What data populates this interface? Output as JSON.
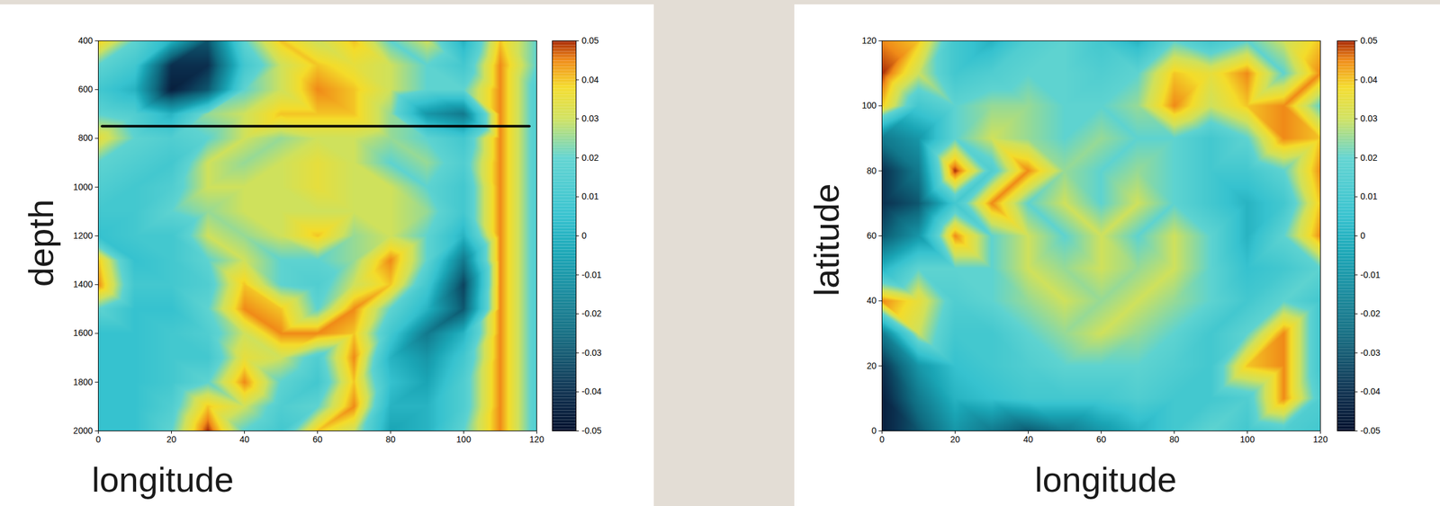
{
  "chart_data": [
    {
      "type": "heatmap",
      "xlabel": "longitude",
      "ylabel": "depth",
      "xlim": [
        0,
        120
      ],
      "ylim": [
        2000,
        400
      ],
      "xticks": [
        0,
        20,
        40,
        60,
        80,
        100,
        120
      ],
      "yticks": [
        400,
        600,
        800,
        1000,
        1200,
        1400,
        1600,
        1800,
        2000
      ],
      "x": [
        0,
        10,
        20,
        30,
        40,
        50,
        60,
        70,
        80,
        90,
        100,
        110,
        120
      ],
      "y": [
        400,
        500,
        600,
        700,
        800,
        900,
        1000,
        1100,
        1200,
        1300,
        1400,
        1500,
        1600,
        1700,
        1800,
        1900,
        2000
      ],
      "cells": [
        [
          0.04,
          0.02,
          0.0,
          -0.03,
          0.02,
          0.04,
          0.03,
          0.04,
          0.02,
          0.03,
          0.0,
          0.04,
          0.02
        ],
        [
          0.02,
          0.01,
          -0.04,
          -0.04,
          0.01,
          0.03,
          0.04,
          0.035,
          0.03,
          0.02,
          0.01,
          0.045,
          0.02
        ],
        [
          0.01,
          0.0,
          -0.045,
          -0.03,
          0.02,
          0.03,
          0.045,
          0.04,
          0.03,
          0.02,
          0.02,
          0.045,
          0.015
        ],
        [
          0.02,
          0.015,
          0.0,
          0.025,
          0.03,
          0.04,
          0.04,
          0.04,
          0.025,
          -0.01,
          -0.02,
          0.045,
          0.015
        ],
        [
          0.035,
          0.02,
          0.015,
          0.02,
          0.03,
          0.025,
          0.03,
          0.03,
          0.025,
          0.02,
          0.01,
          0.045,
          0.015
        ],
        [
          0.02,
          0.015,
          0.01,
          0.03,
          0.025,
          0.03,
          0.035,
          0.03,
          0.02,
          0.025,
          0.015,
          0.045,
          0.015
        ],
        [
          0.015,
          0.01,
          0.015,
          0.03,
          0.03,
          0.03,
          0.035,
          0.03,
          0.03,
          0.02,
          0.01,
          0.045,
          0.015
        ],
        [
          0.01,
          0.01,
          0.02,
          0.025,
          0.03,
          0.03,
          0.03,
          0.03,
          0.03,
          0.025,
          0.01,
          0.045,
          0.015
        ],
        [
          0.005,
          0.01,
          0.01,
          0.03,
          0.025,
          0.03,
          0.04,
          0.025,
          0.03,
          0.02,
          0.0,
          0.045,
          0.015
        ],
        [
          0.04,
          0.005,
          0.01,
          0.02,
          0.03,
          0.02,
          0.02,
          0.025,
          0.045,
          0.02,
          -0.02,
          0.045,
          0.015
        ],
        [
          0.045,
          0.01,
          0.01,
          0.015,
          0.04,
          0.02,
          0.015,
          0.03,
          0.04,
          0.01,
          -0.035,
          0.045,
          0.015
        ],
        [
          0.02,
          0.005,
          0.005,
          0.02,
          0.045,
          0.04,
          0.02,
          0.045,
          0.02,
          0.0,
          -0.03,
          0.045,
          0.015
        ],
        [
          0.005,
          0.005,
          0.01,
          0.015,
          0.03,
          0.045,
          0.045,
          0.04,
          0.01,
          -0.02,
          0.0,
          0.045,
          0.015
        ],
        [
          0.005,
          0.005,
          0.01,
          0.01,
          0.035,
          0.03,
          0.015,
          0.045,
          0.0,
          -0.01,
          0.01,
          0.045,
          0.015
        ],
        [
          0.005,
          0.005,
          0.01,
          0.02,
          0.045,
          0.02,
          0.01,
          0.04,
          0.005,
          -0.005,
          0.015,
          0.045,
          0.015
        ],
        [
          0.005,
          0.005,
          0.015,
          0.04,
          0.03,
          0.015,
          0.02,
          0.045,
          0.0,
          0.0,
          0.015,
          0.045,
          0.015
        ],
        [
          0.005,
          0.005,
          0.02,
          0.05,
          0.02,
          0.01,
          0.04,
          0.03,
          -0.005,
          0.0,
          0.02,
          0.045,
          0.015
        ]
      ],
      "colorbar": {
        "range": [
          -0.05,
          0.05
        ],
        "ticks": [
          -0.05,
          -0.04,
          -0.03,
          -0.02,
          -0.01,
          0,
          0.01,
          0.02,
          0.03,
          0.04,
          0.05
        ]
      },
      "hline": {
        "y": 750,
        "x": [
          1,
          118
        ]
      }
    },
    {
      "type": "heatmap",
      "xlabel": "longitude",
      "ylabel": "latitude",
      "xlim": [
        0,
        120
      ],
      "ylim": [
        0,
        120
      ],
      "xticks": [
        0,
        20,
        40,
        60,
        80,
        100,
        120
      ],
      "yticks": [
        0,
        20,
        40,
        60,
        80,
        100,
        120
      ],
      "x": [
        0,
        10,
        20,
        30,
        40,
        50,
        60,
        70,
        80,
        90,
        100,
        110,
        120
      ],
      "y": [
        120,
        110,
        100,
        90,
        80,
        70,
        60,
        50,
        40,
        30,
        20,
        10,
        0
      ],
      "cells": [
        [
          0.045,
          0.04,
          0.01,
          0.0,
          0.015,
          0.02,
          0.01,
          0.0,
          0.02,
          0.01,
          0.02,
          0.03,
          0.04
        ],
        [
          0.05,
          0.03,
          0.01,
          0.015,
          0.02,
          0.02,
          0.015,
          0.02,
          0.04,
          0.035,
          0.045,
          0.02,
          0.045
        ],
        [
          0.04,
          0.01,
          0.02,
          0.025,
          0.025,
          0.02,
          0.02,
          0.025,
          0.045,
          0.03,
          0.04,
          0.045,
          0.02
        ],
        [
          -0.02,
          -0.01,
          0.02,
          0.03,
          0.025,
          0.02,
          0.025,
          0.02,
          0.02,
          0.01,
          0.02,
          0.045,
          0.04
        ],
        [
          -0.04,
          -0.02,
          0.05,
          0.015,
          0.045,
          0.025,
          0.02,
          0.025,
          0.02,
          0.01,
          0.01,
          0.02,
          0.045
        ],
        [
          -0.04,
          -0.03,
          0.01,
          0.045,
          0.02,
          0.03,
          0.02,
          0.03,
          0.02,
          0.01,
          0.0,
          0.01,
          0.04
        ],
        [
          -0.03,
          -0.01,
          0.045,
          0.02,
          0.03,
          0.02,
          0.03,
          0.02,
          0.03,
          0.02,
          0.0,
          0.02,
          0.045
        ],
        [
          0.0,
          0.02,
          0.02,
          0.02,
          0.03,
          0.025,
          0.03,
          0.025,
          0.03,
          0.02,
          0.005,
          0.01,
          0.02
        ],
        [
          0.045,
          0.035,
          0.015,
          0.02,
          0.025,
          0.03,
          0.025,
          0.03,
          0.025,
          0.02,
          0.01,
          0.02,
          0.01
        ],
        [
          -0.02,
          0.03,
          0.01,
          0.01,
          0.02,
          0.025,
          0.03,
          0.025,
          0.02,
          0.01,
          0.02,
          0.045,
          0.01
        ],
        [
          -0.04,
          -0.01,
          0.005,
          0.01,
          0.015,
          0.02,
          0.02,
          0.02,
          0.015,
          0.01,
          0.04,
          0.045,
          0.01
        ],
        [
          -0.045,
          -0.02,
          0.0,
          0.005,
          0.01,
          0.01,
          0.01,
          0.015,
          0.01,
          0.01,
          0.015,
          0.045,
          0.015
        ],
        [
          -0.045,
          -0.03,
          -0.01,
          -0.02,
          -0.03,
          -0.02,
          -0.01,
          0.0,
          0.01,
          0.02,
          0.01,
          0.015,
          0.01
        ]
      ],
      "colorbar": {
        "range": [
          -0.05,
          0.05
        ],
        "ticks": [
          -0.05,
          -0.04,
          -0.03,
          -0.02,
          -0.01,
          0,
          0.01,
          0.02,
          0.03,
          0.04,
          0.05
        ]
      }
    }
  ]
}
